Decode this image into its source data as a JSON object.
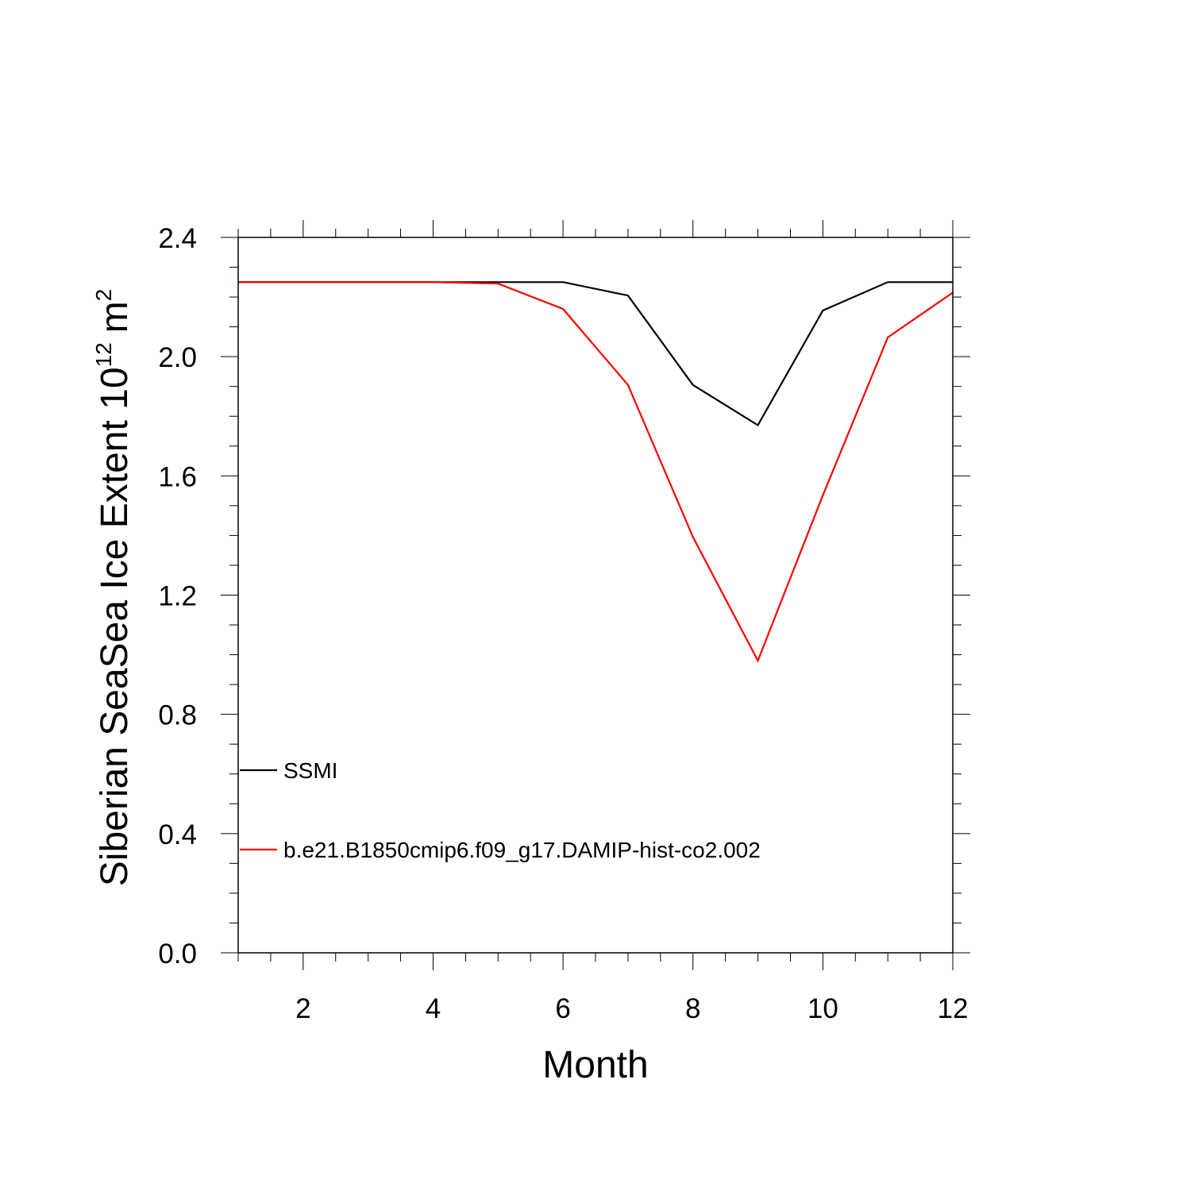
{
  "chart_data": {
    "type": "line",
    "title": "",
    "xlabel": "Month",
    "ylabel": {
      "text": "Siberian SeaSea Ice Extent 10",
      "exponent": "12",
      "unit": "m",
      "unit_exponent": "2"
    },
    "xlim": [
      1,
      12
    ],
    "ylim": [
      0.0,
      2.4
    ],
    "x_ticks": [
      2,
      4,
      6,
      8,
      10,
      12
    ],
    "x_tick_labels": [
      "2",
      "4",
      "6",
      "8",
      "10",
      "12"
    ],
    "y_ticks": [
      0.0,
      0.4,
      0.8,
      1.2,
      1.6,
      2.0,
      2.4
    ],
    "y_tick_labels": [
      "0.0",
      "0.4",
      "0.8",
      "1.2",
      "1.6",
      "2.0",
      "2.4"
    ],
    "x_minor_step": 0.5,
    "y_minor_step": 0.1,
    "grid": false,
    "legend_position": "lower-left",
    "x": [
      1,
      2,
      3,
      4,
      5,
      6,
      7,
      8,
      9,
      10,
      11,
      12
    ],
    "series": [
      {
        "name": "SSMI",
        "color": "#000000",
        "values": [
          2.25,
          2.25,
          2.25,
          2.25,
          2.25,
          2.25,
          2.205,
          1.905,
          1.77,
          2.155,
          2.25,
          2.25
        ]
      },
      {
        "name": "b.e21.B1850cmip6.f09_g17.DAMIP-hist-co2.002",
        "color": "#ff0000",
        "values": [
          2.25,
          2.25,
          2.25,
          2.25,
          2.245,
          2.16,
          1.905,
          1.395,
          0.98,
          1.535,
          2.065,
          2.215
        ]
      }
    ]
  }
}
